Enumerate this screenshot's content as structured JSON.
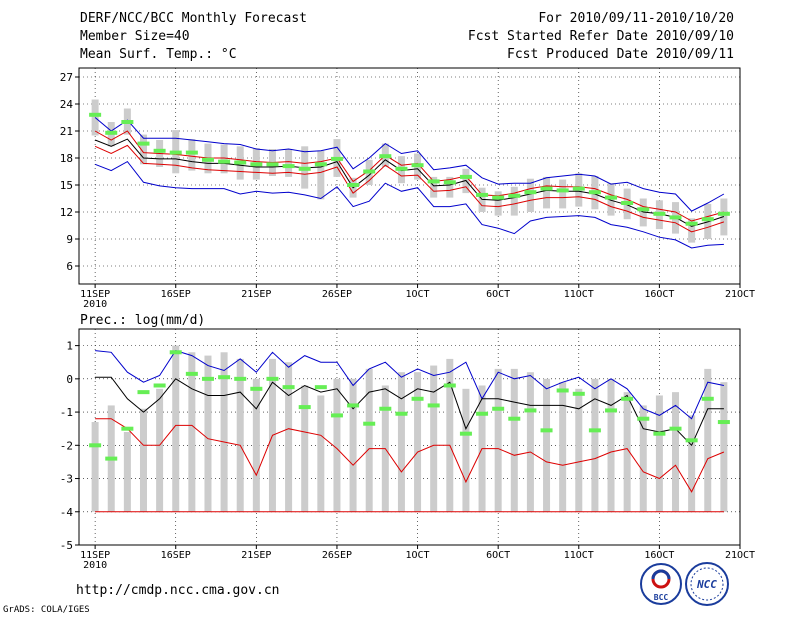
{
  "header": {
    "title": "DERF/NCC/BCC Monthly Forecast",
    "member_size": "Member Size=40",
    "variable": "Mean Surf. Temp.: °C",
    "forecast_period": "For 2010/09/11-2010/10/20",
    "started_refer_date": "Fcst Started Refer Date 2010/09/10",
    "produced_date": "Fcst Produced Date 2010/09/11"
  },
  "footer": {
    "url": "http://cmdp.ncc.cma.gov.cn",
    "grads_credit": "GrADS: COLA/IGES",
    "logo_bcc_text": "BCC",
    "logo_ncc_text": "NCC"
  },
  "colors": {
    "max_line": "#0000cc",
    "mean_line": "#000000",
    "min_line": "#dd0000",
    "median_line": "#228833",
    "bar": "#cccccc",
    "obs_marker": "#66ee55",
    "grid": "#000000"
  },
  "chart_data": [
    {
      "type": "line",
      "title": "Mean Surf. Temp.: °C",
      "xlabel": "",
      "ylabel": "",
      "ylim": [
        4,
        28
      ],
      "yticks": [
        6,
        9,
        12,
        15,
        18,
        21,
        24,
        27
      ],
      "x_ticks": [
        {
          "day": 1,
          "label": "11SEP",
          "sub": "2010"
        },
        {
          "day": 6,
          "label": "16SEP"
        },
        {
          "day": 11,
          "label": "21SEP"
        },
        {
          "day": 16,
          "label": "26SEP"
        },
        {
          "day": 21,
          "label": "1OCT"
        },
        {
          "day": 26,
          "label": "6OCT"
        },
        {
          "day": 31,
          "label": "11OCT"
        },
        {
          "day": 36,
          "label": "16OCT"
        },
        {
          "day": 41,
          "label": "21OCT"
        }
      ],
      "xlim": [
        0,
        41
      ],
      "x": [
        1,
        2,
        3,
        4,
        5,
        6,
        7,
        8,
        9,
        10,
        11,
        12,
        13,
        14,
        15,
        16,
        17,
        18,
        19,
        20,
        21,
        22,
        23,
        24,
        25,
        26,
        27,
        28,
        29,
        30,
        31,
        32,
        33,
        34,
        35,
        36,
        37,
        38,
        39,
        40
      ],
      "series": [
        {
          "name": "Max",
          "color": "#0000cc",
          "values": [
            22.5,
            21.0,
            22.2,
            20.2,
            20.2,
            20.2,
            20.0,
            19.8,
            19.6,
            19.5,
            19.0,
            18.8,
            19.0,
            18.7,
            18.8,
            19.2,
            16.8,
            18.0,
            19.6,
            18.5,
            18.8,
            16.7,
            16.9,
            17.2,
            15.8,
            15.1,
            15.2,
            15.2,
            15.8,
            16.0,
            16.2,
            16.0,
            15.1,
            15.3,
            14.6,
            14.2,
            14.0,
            12.1,
            13.0,
            14.0
          ]
        },
        {
          "name": "Upper",
          "color": "#dd0000",
          "values": [
            21.0,
            20.0,
            21.0,
            18.6,
            18.5,
            18.4,
            18.2,
            18.0,
            18.0,
            17.8,
            17.6,
            17.5,
            17.6,
            17.4,
            17.6,
            18.0,
            15.4,
            16.6,
            18.3,
            17.2,
            17.4,
            15.4,
            15.6,
            16.0,
            13.9,
            13.8,
            14.1,
            14.6,
            14.9,
            14.8,
            14.8,
            14.6,
            13.9,
            13.4,
            12.6,
            12.3,
            12.0,
            11.0,
            11.5,
            12.0
          ]
        },
        {
          "name": "Mean",
          "color": "#000000",
          "values": [
            20.0,
            19.3,
            20.1,
            18.0,
            17.9,
            17.9,
            17.6,
            17.4,
            17.4,
            17.2,
            17.0,
            17.0,
            17.1,
            16.9,
            17.0,
            17.6,
            14.7,
            16.1,
            17.8,
            16.6,
            16.8,
            14.9,
            15.0,
            15.5,
            13.4,
            13.3,
            13.6,
            14.0,
            14.4,
            14.3,
            14.3,
            14.0,
            13.3,
            12.8,
            12.0,
            11.8,
            11.4,
            10.4,
            10.9,
            11.5
          ]
        },
        {
          "name": "Lower",
          "color": "#dd0000",
          "values": [
            19.3,
            18.5,
            19.4,
            17.4,
            17.3,
            17.2,
            16.9,
            16.7,
            16.6,
            16.5,
            16.4,
            16.3,
            16.4,
            16.2,
            16.4,
            17.0,
            14.1,
            15.5,
            17.2,
            16.0,
            16.1,
            14.3,
            14.4,
            14.8,
            12.7,
            12.6,
            12.9,
            13.3,
            13.6,
            13.6,
            13.7,
            13.4,
            12.6,
            12.1,
            11.4,
            11.1,
            10.8,
            9.8,
            10.3,
            10.9
          ]
        },
        {
          "name": "Min",
          "color": "#0000cc",
          "values": [
            17.3,
            16.6,
            17.6,
            15.3,
            14.9,
            14.7,
            14.6,
            14.6,
            14.6,
            14.0,
            14.3,
            14.1,
            14.2,
            13.9,
            13.5,
            14.8,
            12.6,
            13.2,
            15.2,
            14.3,
            14.7,
            12.6,
            12.6,
            12.9,
            10.6,
            10.2,
            9.6,
            11.0,
            11.4,
            11.5,
            11.6,
            11.4,
            10.6,
            10.3,
            9.8,
            9.2,
            8.9,
            8.0,
            8.3,
            8.4
          ]
        }
      ],
      "bars": {
        "name": "Ensemble spread",
        "low": [
          20.5,
          19.3,
          20.6,
          17.3,
          17.0,
          16.3,
          16.6,
          16.3,
          16.3,
          15.6,
          15.6,
          16.0,
          15.9,
          14.6,
          13.4,
          15.9,
          13.6,
          15.0,
          17.0,
          15.2,
          15.6,
          13.6,
          13.6,
          14.1,
          12.0,
          11.6,
          11.6,
          12.0,
          12.4,
          12.4,
          12.6,
          12.3,
          11.6,
          11.2,
          10.4,
          10.1,
          9.6,
          8.6,
          9.0,
          9.4
        ],
        "high": [
          24.5,
          22.0,
          23.5,
          20.6,
          20.0,
          21.1,
          20.1,
          19.6,
          19.5,
          19.3,
          19.1,
          19.0,
          19.0,
          19.3,
          18.8,
          20.1,
          15.8,
          17.8,
          19.6,
          18.2,
          18.5,
          15.9,
          15.9,
          16.8,
          14.7,
          14.3,
          14.8,
          15.7,
          15.9,
          15.6,
          16.3,
          16.0,
          15.2,
          14.6,
          13.5,
          13.3,
          13.1,
          11.3,
          12.9,
          13.5
        ]
      },
      "markers": {
        "name": "Observed",
        "values": [
          22.8,
          20.8,
          22.0,
          19.6,
          18.8,
          18.6,
          18.6,
          17.8,
          17.6,
          17.5,
          17.3,
          17.3,
          17.1,
          16.8,
          17.3,
          17.9,
          15.0,
          16.5,
          18.2,
          16.8,
          17.2,
          15.4,
          15.3,
          15.9,
          13.9,
          13.6,
          13.8,
          14.2,
          14.6,
          14.4,
          14.6,
          14.2,
          13.6,
          13.0,
          12.3,
          11.8,
          11.4,
          10.7,
          11.2,
          11.8
        ]
      }
    },
    {
      "type": "line",
      "title": "Prec.: log(mm/d)",
      "xlabel": "",
      "ylabel": "",
      "ylim": [
        -5,
        1.5
      ],
      "yticks": [
        -5,
        -4,
        -3,
        -2,
        -1,
        0,
        1
      ],
      "x_ticks": [
        {
          "day": 1,
          "label": "11SEP",
          "sub": "2010"
        },
        {
          "day": 6,
          "label": "16SEP"
        },
        {
          "day": 11,
          "label": "21SEP"
        },
        {
          "day": 16,
          "label": "26SEP"
        },
        {
          "day": 21,
          "label": "1OCT"
        },
        {
          "day": 26,
          "label": "6OCT"
        },
        {
          "day": 31,
          "label": "11OCT"
        },
        {
          "day": 36,
          "label": "16OCT"
        },
        {
          "day": 41,
          "label": "21OCT"
        }
      ],
      "xlim": [
        0,
        41
      ],
      "x": [
        1,
        2,
        3,
        4,
        5,
        6,
        7,
        8,
        9,
        10,
        11,
        12,
        13,
        14,
        15,
        16,
        17,
        18,
        19,
        20,
        21,
        22,
        23,
        24,
        25,
        26,
        27,
        28,
        29,
        30,
        31,
        32,
        33,
        34,
        35,
        36,
        37,
        38,
        39,
        40
      ],
      "series": [
        {
          "name": "Max",
          "color": "#0000cc",
          "values": [
            0.85,
            0.8,
            0.2,
            -0.1,
            0.1,
            0.85,
            0.7,
            0.4,
            0.25,
            0.6,
            0.2,
            0.8,
            0.35,
            0.7,
            0.5,
            0.5,
            -0.2,
            0.3,
            0.5,
            0.05,
            0.3,
            0.1,
            0.2,
            0.5,
            -0.6,
            0.2,
            0.0,
            0.1,
            -0.3,
            -0.1,
            0.05,
            -0.3,
            0.0,
            -0.3,
            -0.9,
            -1.1,
            -0.8,
            -1.2,
            -0.1,
            -0.2
          ]
        },
        {
          "name": "Mean",
          "color": "#000000",
          "values": [
            0.05,
            0.05,
            -0.6,
            -1.0,
            -0.6,
            0.0,
            -0.3,
            -0.5,
            -0.5,
            -0.4,
            -0.9,
            -0.1,
            -0.5,
            -0.2,
            -0.4,
            -0.3,
            -0.9,
            -0.4,
            -0.3,
            -0.6,
            -0.3,
            -0.4,
            -0.1,
            -1.5,
            -0.6,
            -0.6,
            -0.7,
            -0.8,
            -0.8,
            -0.8,
            -0.9,
            -0.6,
            -0.8,
            -0.5,
            -1.5,
            -1.6,
            -1.5,
            -2.0,
            -0.9,
            -0.9
          ]
        },
        {
          "name": "Min",
          "color": "#dd0000",
          "values": [
            -1.2,
            -1.2,
            -1.5,
            -2.0,
            -2.0,
            -1.4,
            -1.4,
            -1.8,
            -1.9,
            -2.0,
            -2.9,
            -1.7,
            -1.5,
            -1.6,
            -1.7,
            -2.1,
            -2.6,
            -2.1,
            -2.1,
            -2.8,
            -2.2,
            -2.0,
            -2.0,
            -3.1,
            -2.1,
            -2.1,
            -2.3,
            -2.2,
            -2.5,
            -2.6,
            -2.5,
            -2.4,
            -2.2,
            -2.1,
            -2.8,
            -3.0,
            -2.6,
            -3.4,
            -2.4,
            -2.2
          ]
        },
        {
          "name": "Floor",
          "color": "#dd0000",
          "values": [
            -4,
            -4,
            -4,
            -4,
            -4,
            -4,
            -4,
            -4,
            -4,
            -4,
            -4,
            -4,
            -4,
            -4,
            -4,
            -4,
            -4,
            -4,
            -4,
            -4,
            -4,
            -4,
            -4,
            -4,
            -4,
            -4,
            -4,
            -4,
            -4,
            -4,
            -4,
            -4,
            -4,
            -4,
            -4,
            -4,
            -4,
            -4,
            -4,
            -4
          ]
        }
      ],
      "bars": {
        "name": "Ensemble spread",
        "low": [
          -4,
          -4,
          -4,
          -4,
          -4,
          -4,
          -4,
          -4,
          -4,
          -4,
          -4,
          -4,
          -4,
          -4,
          -4,
          -4,
          -4,
          -4,
          -4,
          -4,
          -4,
          -4,
          -4,
          -4,
          -4,
          -4,
          -4,
          -4,
          -4,
          -4,
          -4,
          -4,
          -4,
          -4,
          -4,
          -4,
          -4,
          -4,
          -4,
          -4
        ],
        "high": [
          -1.3,
          -0.8,
          -1.6,
          -0.9,
          -0.3,
          1.0,
          0.8,
          0.7,
          0.8,
          0.6,
          0.0,
          0.6,
          0.5,
          -0.2,
          -0.5,
          0.0,
          0.0,
          0.3,
          -0.2,
          0.2,
          0.2,
          0.4,
          0.6,
          -0.3,
          -0.2,
          0.3,
          0.3,
          0.2,
          0.0,
          -0.1,
          -0.3,
          0.0,
          0.0,
          -0.4,
          -0.8,
          -0.5,
          -0.4,
          -1.1,
          0.3,
          -0.1
        ]
      },
      "markers": {
        "name": "Observed",
        "values": [
          -2.0,
          -2.4,
          -1.5,
          -0.4,
          -0.2,
          0.8,
          0.15,
          0.0,
          0.05,
          0.0,
          -0.3,
          0.0,
          -0.25,
          -0.85,
          -0.25,
          -1.1,
          -0.8,
          -1.35,
          -0.9,
          -1.05,
          -0.6,
          -0.8,
          -0.2,
          -1.65,
          -1.05,
          -0.9,
          -1.2,
          -0.95,
          -1.55,
          -0.35,
          -0.45,
          -1.55,
          -0.95,
          -0.6,
          -1.2,
          -1.65,
          -1.5,
          -1.85,
          -0.6,
          -1.3
        ]
      }
    }
  ]
}
